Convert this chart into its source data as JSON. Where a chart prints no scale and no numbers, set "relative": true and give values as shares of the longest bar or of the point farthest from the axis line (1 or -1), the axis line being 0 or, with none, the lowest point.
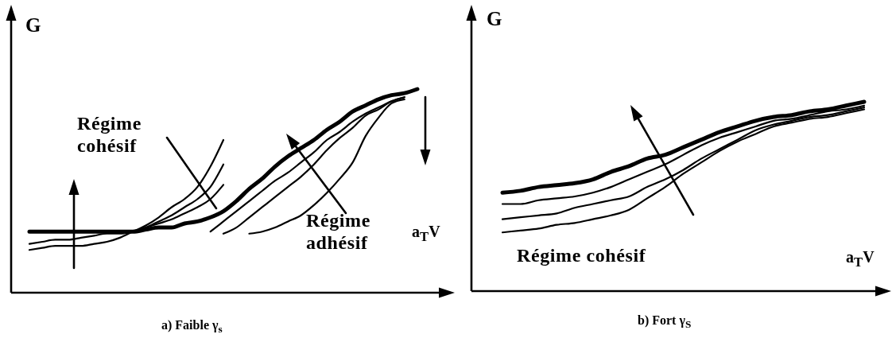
{
  "chart_data": [
    {
      "type": "line",
      "title": "a) Faible γ$_{s}$",
      "xlabel": "a$_{T}$V",
      "ylabel": "G",
      "relative": true,
      "line_style": "solid",
      "categories": [
        null,
        null,
        null,
        null,
        null,
        null,
        null,
        null,
        null,
        null,
        null,
        null,
        null,
        null,
        null,
        null,
        null,
        null,
        null,
        null,
        null,
        null,
        null,
        null,
        null,
        null,
        null,
        null,
        null,
        null,
        null
      ],
      "series": [
        {
          "color": "#000000",
          "values": [
            0.3,
            0.3,
            0.3,
            0.3,
            0.3,
            0.3,
            0.3,
            0.3,
            0.3,
            0.31,
            0.32,
            0.32,
            0.34,
            0.35,
            0.37,
            0.4,
            0.45,
            0.51,
            0.56,
            0.62,
            0.67,
            0.71,
            0.75,
            0.8,
            0.84,
            0.89,
            0.92,
            0.95,
            0.97,
            0.98,
            1
          ]
        },
        {
          "color": "#000000",
          "values": [
            0.21,
            0.22,
            0.23,
            0.23,
            0.23,
            0.24,
            0.25,
            0.27,
            0.3,
            0.33,
            0.37,
            0.42,
            0.46,
            0.52,
            0.62,
            0.75,
            null,
            null,
            null,
            null,
            null,
            null,
            null,
            null,
            null,
            null,
            null,
            null,
            null,
            null,
            null
          ]
        },
        {
          "color": "#000000",
          "values": [
            0.24,
            0.25,
            0.26,
            0.26,
            0.27,
            0.28,
            0.29,
            0.29,
            0.3,
            0.32,
            0.35,
            0.38,
            0.42,
            0.46,
            0.52,
            0.63,
            null,
            null,
            null,
            null,
            null,
            null,
            null,
            null,
            null,
            null,
            null,
            null,
            null,
            null,
            null
          ]
        },
        {
          "color": "#000000",
          "values": [
            null,
            null,
            null,
            null,
            null,
            null,
            null,
            null,
            0.3,
            0.32,
            0.34,
            0.36,
            0.39,
            0.42,
            0.46,
            0.53,
            null,
            null,
            null,
            null,
            null,
            null,
            null,
            null,
            null,
            null,
            null,
            null,
            null,
            null,
            null
          ]
        },
        {
          "color": "#000000",
          "values": [
            null,
            null,
            null,
            null,
            null,
            null,
            null,
            null,
            null,
            null,
            null,
            null,
            null,
            null,
            0.3,
            0.35,
            0.4,
            0.45,
            0.5,
            0.55,
            0.59,
            0.64,
            0.69,
            0.75,
            0.79,
            0.84,
            0.88,
            0.91,
            0.94,
            0.96,
            null
          ]
        },
        {
          "color": "#000000",
          "values": [
            null,
            null,
            null,
            null,
            null,
            null,
            null,
            null,
            null,
            null,
            null,
            null,
            null,
            null,
            null,
            0.29,
            0.32,
            0.37,
            0.42,
            0.47,
            0.52,
            0.57,
            0.63,
            0.7,
            0.76,
            0.81,
            0.87,
            0.9,
            0.94,
            0.96,
            null
          ]
        },
        {
          "color": "#000000",
          "values": [
            null,
            null,
            null,
            null,
            null,
            null,
            null,
            null,
            null,
            null,
            null,
            null,
            null,
            null,
            null,
            null,
            null,
            0.29,
            0.3,
            0.32,
            0.35,
            0.38,
            0.43,
            0.49,
            0.56,
            0.64,
            0.77,
            0.86,
            0.93,
            0.95,
            null
          ]
        }
      ],
      "annotations": [
        "Régime cohésif",
        "Régime adhésif"
      ]
    },
    {
      "type": "line",
      "title": "b) Fort γ$_{S}$",
      "xlabel": "a$_{T}$V",
      "ylabel": "G",
      "relative": true,
      "line_style": "solid",
      "categories": [
        null,
        null,
        null,
        null,
        null,
        null,
        null,
        null,
        null,
        null,
        null,
        null,
        null,
        null,
        null,
        null,
        null,
        null,
        null,
        null,
        null
      ],
      "series": [
        {
          "color": "#000000",
          "values": [
            0.52,
            0.53,
            0.55,
            0.56,
            0.57,
            0.59,
            0.63,
            0.66,
            0.7,
            0.72,
            0.76,
            0.8,
            0.84,
            0.87,
            0.9,
            0.92,
            0.93,
            0.95,
            0.96,
            0.98,
            1
          ]
        },
        {
          "color": "#000000",
          "values": [
            0.46,
            0.46,
            0.48,
            0.49,
            0.5,
            0.52,
            0.55,
            0.59,
            0.63,
            0.67,
            0.72,
            0.77,
            0.81,
            0.84,
            0.87,
            0.9,
            0.91,
            0.93,
            0.95,
            0.96,
            0.98
          ]
        },
        {
          "color": "#000000",
          "values": [
            0.38,
            0.39,
            0.4,
            0.41,
            0.44,
            0.46,
            0.48,
            0.5,
            0.55,
            0.59,
            0.64,
            0.7,
            0.75,
            0.8,
            0.85,
            0.88,
            0.9,
            0.92,
            0.93,
            0.95,
            0.97
          ]
        },
        {
          "color": "#000000",
          "values": [
            0.31,
            0.32,
            0.33,
            0.35,
            0.36,
            0.38,
            0.4,
            0.43,
            0.49,
            0.55,
            0.62,
            0.68,
            0.74,
            0.79,
            0.83,
            0.87,
            0.89,
            0.91,
            0.92,
            0.94,
            0.96
          ]
        }
      ],
      "annotations": [
        "Régime cohésif"
      ]
    }
  ]
}
